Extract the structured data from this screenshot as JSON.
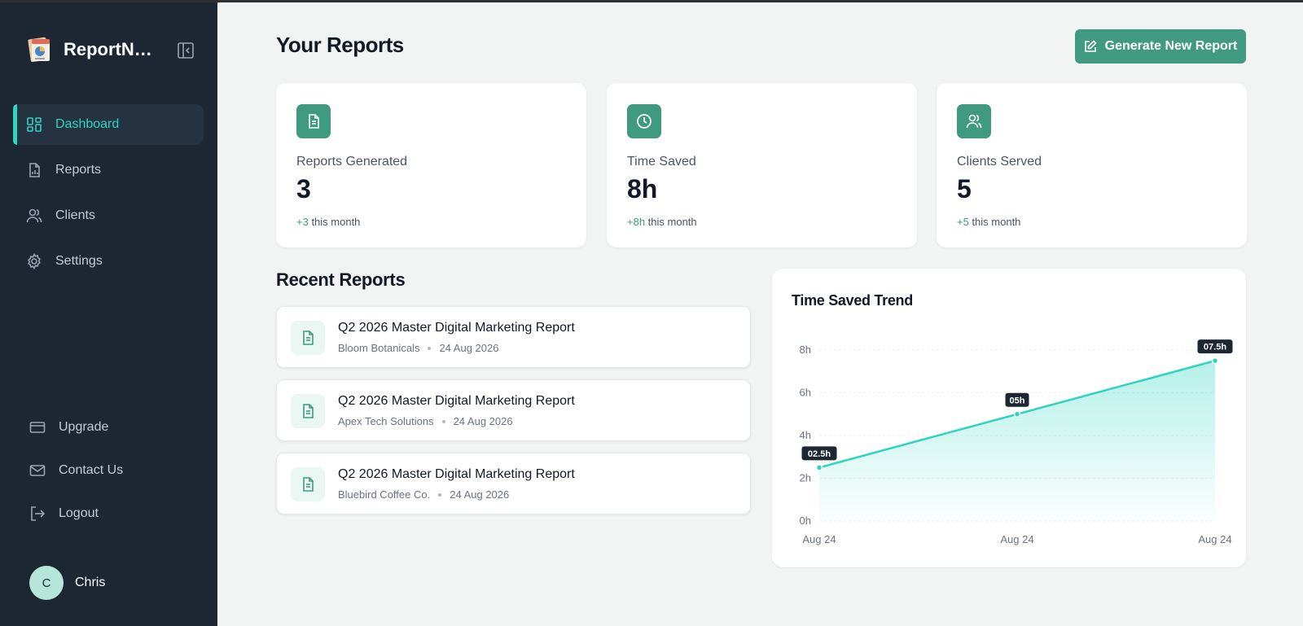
{
  "app": {
    "brand": "ReportNe..."
  },
  "nav": {
    "items": [
      {
        "label": "Dashboard",
        "icon": "dashboard-icon",
        "active": true
      },
      {
        "label": "Reports",
        "icon": "report-file-icon"
      },
      {
        "label": "Clients",
        "icon": "users-icon"
      },
      {
        "label": "Settings",
        "icon": "gear-icon"
      }
    ],
    "bottom": [
      {
        "label": "Upgrade",
        "icon": "credit-card-icon"
      },
      {
        "label": "Contact Us",
        "icon": "mail-icon"
      },
      {
        "label": "Logout",
        "icon": "logout-icon"
      }
    ]
  },
  "user": {
    "initial": "C",
    "name": "Chris"
  },
  "header": {
    "title": "Your Reports",
    "generate_label": "Generate New Report"
  },
  "stats": [
    {
      "label": "Reports Generated",
      "value": "3",
      "delta": "+3",
      "suffix": " this month",
      "icon": "document-icon"
    },
    {
      "label": "Time Saved",
      "value": "8h",
      "delta": "+8h",
      "suffix": " this month",
      "icon": "clock-icon"
    },
    {
      "label": "Clients Served",
      "value": "5",
      "delta": "+5",
      "suffix": " this month",
      "icon": "users-icon"
    }
  ],
  "recent": {
    "title": "Recent Reports",
    "items": [
      {
        "title": "Q2 2026 Master Digital Marketing Report",
        "client": "Bloom Botanicals",
        "date": "24 Aug 2026"
      },
      {
        "title": "Q2 2026 Master Digital Marketing Report",
        "client": "Apex Tech Solutions",
        "date": "24 Aug 2026"
      },
      {
        "title": "Q2 2026 Master Digital Marketing Report",
        "client": "Bluebird Coffee Co.",
        "date": "24 Aug 2026"
      }
    ]
  },
  "colors": {
    "accent": "#2dd4bf",
    "brand_green": "#3f9a7f",
    "sidebar_bg": "#1d2734"
  },
  "chart_data": {
    "type": "area",
    "title": "Time Saved Trend",
    "categories": [
      "Aug 24",
      "Aug 24",
      "Aug 24"
    ],
    "values": [
      2.5,
      5,
      7.5
    ],
    "data_labels": [
      "02.5h",
      "05h",
      "07.5h"
    ],
    "yticks": [
      "0h",
      "2h",
      "4h",
      "6h",
      "8h"
    ],
    "ylim": [
      0,
      8
    ],
    "grid": true,
    "legend": "none"
  }
}
